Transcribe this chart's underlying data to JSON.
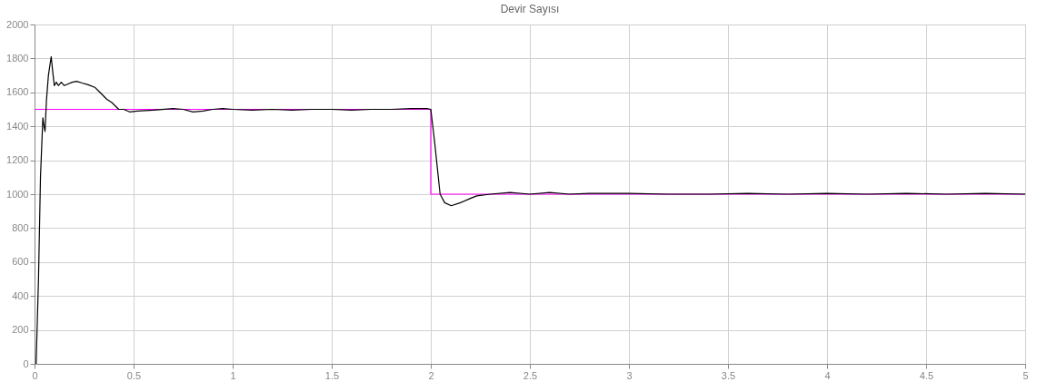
{
  "chart_data": {
    "type": "line",
    "title": "Devir Sayısı",
    "xlim": [
      0,
      5
    ],
    "ylim": [
      0,
      2000
    ],
    "xticks": [
      0,
      0.5,
      1,
      1.5,
      2,
      2.5,
      3,
      3.5,
      4,
      4.5,
      5
    ],
    "yticks": [
      0,
      200,
      400,
      600,
      800,
      1000,
      1200,
      1400,
      1600,
      1800,
      2000
    ],
    "grid": true,
    "line_style": "solid",
    "series": [
      {
        "color": "#ff00ff",
        "x": [
          0,
          2,
          2,
          5
        ],
        "values": [
          1500,
          1500,
          1000,
          1000
        ]
      },
      {
        "color": "#000000",
        "x": [
          0.008,
          0.02,
          0.03,
          0.042,
          0.048,
          0.053,
          0.06,
          0.07,
          0.084,
          0.092,
          0.1,
          0.11,
          0.12,
          0.135,
          0.15,
          0.17,
          0.19,
          0.213,
          0.24,
          0.27,
          0.304,
          0.33,
          0.364,
          0.39,
          0.425,
          0.45,
          0.48,
          0.52,
          0.6,
          0.7,
          0.75,
          0.8,
          0.85,
          0.9,
          0.95,
          1.0,
          1.1,
          1.2,
          1.3,
          1.4,
          1.5,
          1.6,
          1.7,
          1.8,
          1.9,
          1.98,
          2.0,
          2.02,
          2.047,
          2.07,
          2.103,
          2.15,
          2.2,
          2.232,
          2.3,
          2.4,
          2.5,
          2.6,
          2.7,
          2.8,
          3.0,
          3.2,
          3.4,
          3.6,
          3.8,
          4.0,
          4.2,
          4.4,
          4.6,
          4.8,
          5.0
        ],
        "values": [
          0,
          500,
          1100,
          1450,
          1400,
          1370,
          1550,
          1700,
          1810,
          1720,
          1640,
          1660,
          1640,
          1660,
          1640,
          1650,
          1660,
          1665,
          1655,
          1645,
          1630,
          1600,
          1560,
          1540,
          1500,
          1500,
          1485,
          1490,
          1495,
          1505,
          1500,
          1485,
          1490,
          1500,
          1505,
          1500,
          1495,
          1500,
          1495,
          1500,
          1500,
          1495,
          1500,
          1500,
          1505,
          1505,
          1500,
          1300,
          1000,
          950,
          932,
          950,
          975,
          990,
          1000,
          1010,
          1000,
          1010,
          1000,
          1005,
          1005,
          1000,
          1000,
          1005,
          1000,
          1005,
          1000,
          1005,
          1000,
          1005,
          1000
        ]
      }
    ]
  }
}
